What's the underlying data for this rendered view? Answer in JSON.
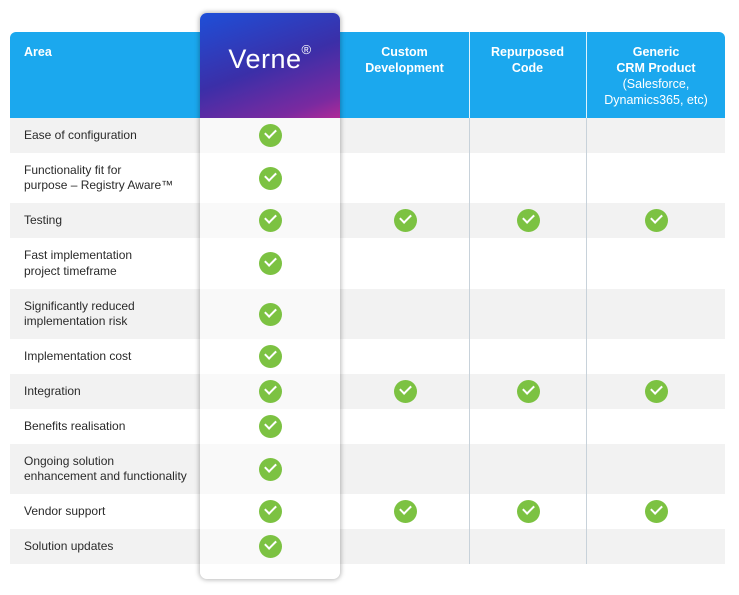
{
  "header": {
    "area": "Area",
    "verne_brand": "Verne",
    "verne_mark": "®",
    "custom_line1": "Custom",
    "custom_line2": "Development",
    "repurposed_line1": "Repurposed",
    "repurposed_line2": "Code",
    "generic_line1": "Generic",
    "generic_line2": "CRM Product",
    "generic_sub1": "(Salesforce,",
    "generic_sub2": "Dynamics365, etc)"
  },
  "colors": {
    "header_blue": "#1ba8ee",
    "check_green": "#7cc242",
    "row_shade": "#f2f2f2"
  },
  "rows": [
    {
      "label_lines": [
        "Ease of configuration"
      ],
      "verne": true,
      "custom": false,
      "repurposed": false,
      "generic": false
    },
    {
      "label_lines": [
        "Functionality fit for",
        "purpose – Registry Aware™"
      ],
      "verne": true,
      "custom": false,
      "repurposed": false,
      "generic": false
    },
    {
      "label_lines": [
        "Testing"
      ],
      "verne": true,
      "custom": true,
      "repurposed": true,
      "generic": true
    },
    {
      "label_lines": [
        "Fast implementation",
        "project timeframe"
      ],
      "verne": true,
      "custom": false,
      "repurposed": false,
      "generic": false
    },
    {
      "label_lines": [
        "Significantly reduced",
        "implementation risk"
      ],
      "verne": true,
      "custom": false,
      "repurposed": false,
      "generic": false
    },
    {
      "label_lines": [
        "Implementation cost"
      ],
      "verne": true,
      "custom": false,
      "repurposed": false,
      "generic": false
    },
    {
      "label_lines": [
        "Integration"
      ],
      "verne": true,
      "custom": true,
      "repurposed": true,
      "generic": true
    },
    {
      "label_lines": [
        "Benefits realisation"
      ],
      "verne": true,
      "custom": false,
      "repurposed": false,
      "generic": false
    },
    {
      "label_lines": [
        "Ongoing solution",
        "enhancement and functionality"
      ],
      "verne": true,
      "custom": false,
      "repurposed": false,
      "generic": false
    },
    {
      "label_lines": [
        "Vendor support"
      ],
      "verne": true,
      "custom": true,
      "repurposed": true,
      "generic": true
    },
    {
      "label_lines": [
        "Solution updates"
      ],
      "verne": true,
      "custom": false,
      "repurposed": false,
      "generic": false
    }
  ]
}
